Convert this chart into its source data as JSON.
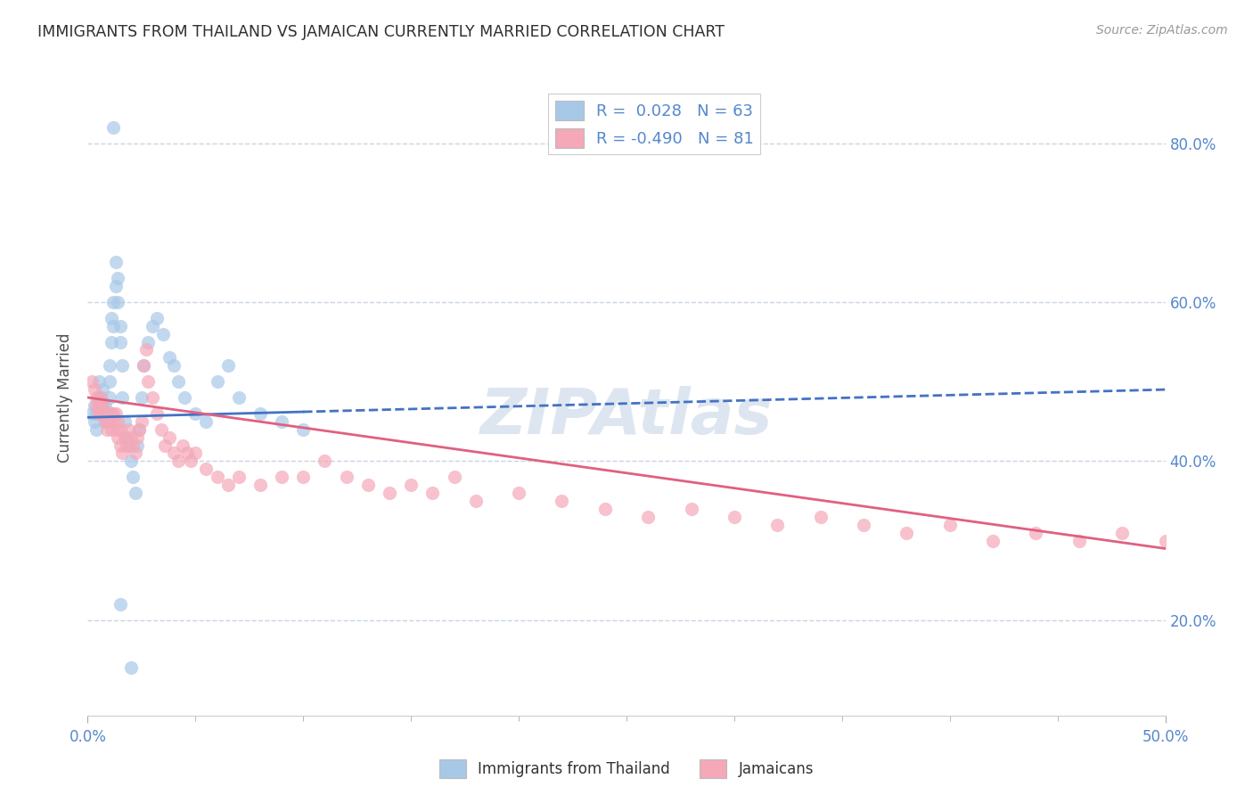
{
  "title": "IMMIGRANTS FROM THAILAND VS JAMAICAN CURRENTLY MARRIED CORRELATION CHART",
  "source": "Source: ZipAtlas.com",
  "ylabel": "Currently Married",
  "right_yticks": [
    "20.0%",
    "40.0%",
    "60.0%",
    "80.0%"
  ],
  "right_ytick_vals": [
    0.2,
    0.4,
    0.6,
    0.8
  ],
  "xlim": [
    0.0,
    0.5
  ],
  "ylim": [
    0.08,
    0.88
  ],
  "color_thailand": "#a8c8e8",
  "color_jamaican": "#f4a8b8",
  "line_color_thailand": "#4472c4",
  "line_color_jamaican": "#e06080",
  "watermark_color": "#ccd8e8",
  "background_color": "#ffffff",
  "grid_color": "#c8d4e4",
  "title_color": "#303030",
  "tick_color": "#5588cc",
  "thailand_x": [
    0.002,
    0.003,
    0.003,
    0.004,
    0.004,
    0.005,
    0.005,
    0.005,
    0.006,
    0.006,
    0.006,
    0.007,
    0.007,
    0.007,
    0.008,
    0.008,
    0.008,
    0.009,
    0.009,
    0.01,
    0.01,
    0.01,
    0.011,
    0.011,
    0.012,
    0.012,
    0.013,
    0.013,
    0.014,
    0.014,
    0.015,
    0.015,
    0.016,
    0.016,
    0.017,
    0.018,
    0.019,
    0.02,
    0.021,
    0.022,
    0.023,
    0.024,
    0.025,
    0.026,
    0.028,
    0.03,
    0.032,
    0.035,
    0.038,
    0.04,
    0.042,
    0.045,
    0.05,
    0.055,
    0.06,
    0.065,
    0.07,
    0.08,
    0.09,
    0.1,
    0.012,
    0.015,
    0.02
  ],
  "thailand_y": [
    0.46,
    0.45,
    0.47,
    0.44,
    0.46,
    0.48,
    0.46,
    0.5,
    0.47,
    0.48,
    0.46,
    0.47,
    0.46,
    0.49,
    0.45,
    0.46,
    0.47,
    0.45,
    0.46,
    0.48,
    0.5,
    0.52,
    0.55,
    0.58,
    0.57,
    0.6,
    0.62,
    0.65,
    0.63,
    0.6,
    0.57,
    0.55,
    0.52,
    0.48,
    0.45,
    0.43,
    0.42,
    0.4,
    0.38,
    0.36,
    0.42,
    0.44,
    0.48,
    0.52,
    0.55,
    0.57,
    0.58,
    0.56,
    0.53,
    0.52,
    0.5,
    0.48,
    0.46,
    0.45,
    0.5,
    0.52,
    0.48,
    0.46,
    0.45,
    0.44,
    0.82,
    0.22,
    0.14
  ],
  "jamaican_x": [
    0.002,
    0.003,
    0.004,
    0.004,
    0.005,
    0.005,
    0.006,
    0.006,
    0.007,
    0.007,
    0.008,
    0.008,
    0.009,
    0.009,
    0.01,
    0.01,
    0.011,
    0.011,
    0.012,
    0.012,
    0.013,
    0.013,
    0.014,
    0.014,
    0.015,
    0.015,
    0.016,
    0.017,
    0.018,
    0.019,
    0.02,
    0.021,
    0.022,
    0.023,
    0.024,
    0.025,
    0.026,
    0.027,
    0.028,
    0.03,
    0.032,
    0.034,
    0.036,
    0.038,
    0.04,
    0.042,
    0.044,
    0.046,
    0.048,
    0.05,
    0.055,
    0.06,
    0.065,
    0.07,
    0.08,
    0.09,
    0.1,
    0.11,
    0.12,
    0.13,
    0.14,
    0.15,
    0.16,
    0.17,
    0.18,
    0.2,
    0.22,
    0.24,
    0.26,
    0.28,
    0.3,
    0.32,
    0.34,
    0.36,
    0.38,
    0.4,
    0.42,
    0.44,
    0.46,
    0.48,
    0.5
  ],
  "jamaican_y": [
    0.5,
    0.49,
    0.48,
    0.47,
    0.46,
    0.47,
    0.46,
    0.48,
    0.46,
    0.47,
    0.45,
    0.46,
    0.44,
    0.46,
    0.45,
    0.46,
    0.44,
    0.46,
    0.45,
    0.46,
    0.44,
    0.46,
    0.43,
    0.45,
    0.42,
    0.44,
    0.41,
    0.43,
    0.42,
    0.44,
    0.43,
    0.42,
    0.41,
    0.43,
    0.44,
    0.45,
    0.52,
    0.54,
    0.5,
    0.48,
    0.46,
    0.44,
    0.42,
    0.43,
    0.41,
    0.4,
    0.42,
    0.41,
    0.4,
    0.41,
    0.39,
    0.38,
    0.37,
    0.38,
    0.37,
    0.38,
    0.38,
    0.4,
    0.38,
    0.37,
    0.36,
    0.37,
    0.36,
    0.38,
    0.35,
    0.36,
    0.35,
    0.34,
    0.33,
    0.34,
    0.33,
    0.32,
    0.33,
    0.32,
    0.31,
    0.32,
    0.3,
    0.31,
    0.3,
    0.31,
    0.3
  ],
  "thailand_trend_x": [
    0.0,
    0.5
  ],
  "thailand_trend_y": [
    0.455,
    0.49
  ],
  "jamaican_trend_x": [
    0.0,
    0.5
  ],
  "jamaican_trend_y": [
    0.48,
    0.29
  ]
}
